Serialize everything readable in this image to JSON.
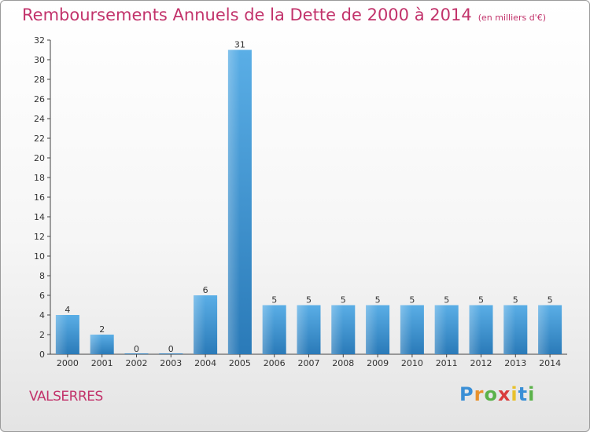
{
  "title": "Remboursements Annuels de la Dette de 2000 à 2014",
  "subtitle": "(en milliers d'€)",
  "commune": "VALSERRES",
  "logo": {
    "text": "Proxiti",
    "colors": [
      "#3a8fd6",
      "#e8912c",
      "#5bb24a",
      "#d93b3b",
      "#e8c12c",
      "#3a8fd6",
      "#5bb24a"
    ]
  },
  "chart_data": {
    "type": "bar",
    "categories": [
      "2000",
      "2001",
      "2002",
      "2003",
      "2004",
      "2005",
      "2006",
      "2007",
      "2008",
      "2009",
      "2010",
      "2011",
      "2012",
      "2013",
      "2014"
    ],
    "values": [
      4,
      2,
      0,
      0,
      6,
      31,
      5,
      5,
      5,
      5,
      5,
      5,
      5,
      5,
      5
    ],
    "data_labels": [
      "4",
      "2",
      "0",
      "0",
      "6",
      "31",
      "5",
      "5",
      "5",
      "5",
      "5",
      "5",
      "5",
      "5",
      "5"
    ],
    "ylim": [
      0,
      32
    ],
    "yticks": [
      0,
      2,
      4,
      6,
      8,
      10,
      12,
      14,
      16,
      18,
      20,
      22,
      24,
      26,
      28,
      30,
      32
    ],
    "grid": false,
    "bar_color_light": "#5aaee6",
    "bar_color_dark": "#2a7ab8"
  }
}
